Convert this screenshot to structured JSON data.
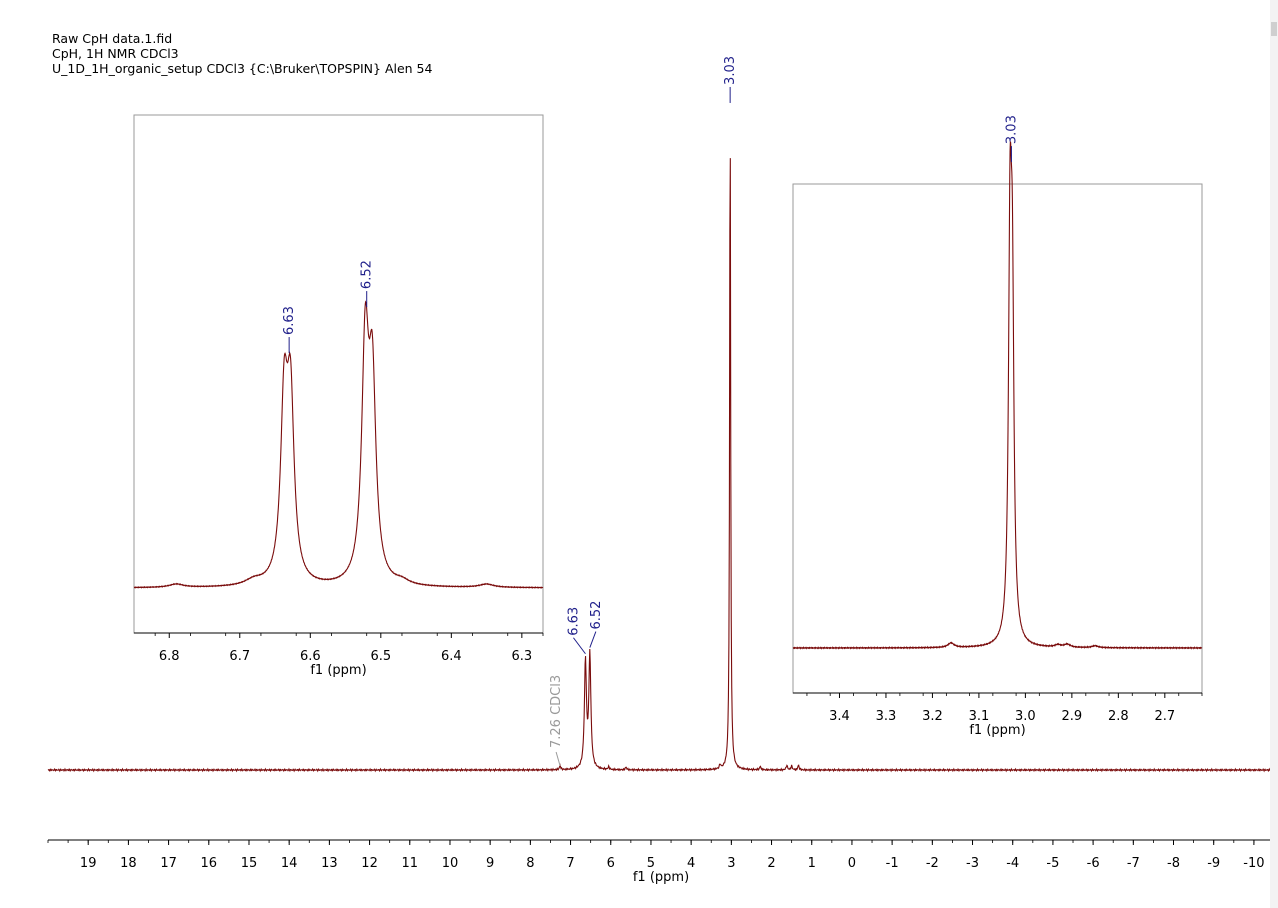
{
  "header": {
    "line1": "Raw CpH data.1.fid",
    "line2": "CpH, 1H NMR CDCl3",
    "line3": "U_1D_1H_organic_setup CDCl3 {C:\\Bruker\\TOPSPIN} Alen 54"
  },
  "colors": {
    "spectrum": "#7a0c0c",
    "peak_label": "#1f1f8a",
    "solvent_label": "#9a9a9a",
    "axis": "#000000"
  },
  "chart_data": [
    {
      "type": "line",
      "name": "main",
      "xlabel": "f1 (ppm)",
      "xlim": [
        20,
        -10.5
      ],
      "x_ticks": [
        19,
        18,
        17,
        16,
        15,
        14,
        13,
        12,
        11,
        10,
        9,
        8,
        7,
        6,
        5,
        4,
        3,
        2,
        1,
        0,
        -1,
        -2,
        -3,
        -4,
        -5,
        -6,
        -7,
        -8,
        -9,
        -10
      ],
      "x_tick_labels": [
        "19",
        "18",
        "17",
        "16",
        "15",
        "14",
        "13",
        "12",
        "11",
        "10",
        "9",
        "8",
        "7",
        "6",
        "5",
        "4",
        "3",
        "2",
        "1",
        "0",
        "-1",
        "-2",
        "-3",
        "-4",
        "-5",
        "-6",
        "-7",
        "-8",
        "-9",
        "-10"
      ],
      "peaks": [
        {
          "ppm": 6.63,
          "height": 0.16,
          "width": 0.03
        },
        {
          "ppm": 6.52,
          "height": 0.17,
          "width": 0.03
        },
        {
          "ppm": 3.03,
          "height": 1.0,
          "width": 0.015
        },
        {
          "ppm": 7.26,
          "height": 0.006,
          "width": 0.02
        },
        {
          "ppm": 6.05,
          "height": 0.004,
          "width": 0.02
        },
        {
          "ppm": 5.62,
          "height": 0.004,
          "width": 0.02
        },
        {
          "ppm": 3.28,
          "height": 0.006,
          "width": 0.02
        },
        {
          "ppm": 2.28,
          "height": 0.005,
          "width": 0.02
        },
        {
          "ppm": 1.62,
          "height": 0.007,
          "width": 0.02
        },
        {
          "ppm": 1.5,
          "height": 0.006,
          "width": 0.02
        },
        {
          "ppm": 1.33,
          "height": 0.007,
          "width": 0.02
        }
      ],
      "peak_labels": [
        {
          "ppm": 6.63,
          "label": "6.63"
        },
        {
          "ppm": 6.52,
          "label": "6.52"
        },
        {
          "ppm": 3.03,
          "label": "3.03"
        }
      ],
      "solvent_label": {
        "ppm": 7.26,
        "label": "7.26 CDCl3"
      }
    },
    {
      "type": "line",
      "name": "inset-aromatic",
      "xlabel": "f1 (ppm)",
      "xlim": [
        6.85,
        6.27
      ],
      "x_ticks": [
        6.8,
        6.7,
        6.6,
        6.5,
        6.4,
        6.3
      ],
      "x_tick_labels": [
        "6.8",
        "6.7",
        "6.6",
        "6.5",
        "6.4",
        "6.3"
      ],
      "peaks": [
        {
          "ppm": 6.637,
          "height": 0.64,
          "width": 0.006
        },
        {
          "ppm": 6.628,
          "height": 0.64,
          "width": 0.006
        },
        {
          "ppm": 6.522,
          "height": 0.85,
          "width": 0.006
        },
        {
          "ppm": 6.512,
          "height": 0.7,
          "width": 0.006
        },
        {
          "ppm": 6.79,
          "height": 0.012,
          "width": 0.012
        },
        {
          "ppm": 6.68,
          "height": 0.02,
          "width": 0.015
        },
        {
          "ppm": 6.47,
          "height": 0.015,
          "width": 0.012
        },
        {
          "ppm": 6.35,
          "height": 0.012,
          "width": 0.012
        }
      ],
      "peak_labels": [
        {
          "ppm": 6.63,
          "label": "6.63"
        },
        {
          "ppm": 6.52,
          "label": "6.52"
        }
      ]
    },
    {
      "type": "line",
      "name": "inset-aliphatic",
      "xlabel": "f1 (ppm)",
      "xlim": [
        3.5,
        2.62
      ],
      "x_ticks": [
        3.4,
        3.3,
        3.2,
        3.1,
        3.0,
        2.9,
        2.8,
        2.7
      ],
      "x_tick_labels": [
        "3.4",
        "3.3",
        "3.2",
        "3.1",
        "3.0",
        "2.9",
        "2.8",
        "2.7"
      ],
      "peaks": [
        {
          "ppm": 3.033,
          "height": 1.0,
          "width": 0.004
        },
        {
          "ppm": 3.028,
          "height": 0.8,
          "width": 0.004
        },
        {
          "ppm": 3.16,
          "height": 0.012,
          "width": 0.008
        },
        {
          "ppm": 2.93,
          "height": 0.006,
          "width": 0.008
        },
        {
          "ppm": 2.91,
          "height": 0.008,
          "width": 0.008
        },
        {
          "ppm": 2.85,
          "height": 0.005,
          "width": 0.008
        }
      ],
      "peak_labels": [
        {
          "ppm": 3.03,
          "label": "3.03"
        }
      ]
    }
  ]
}
